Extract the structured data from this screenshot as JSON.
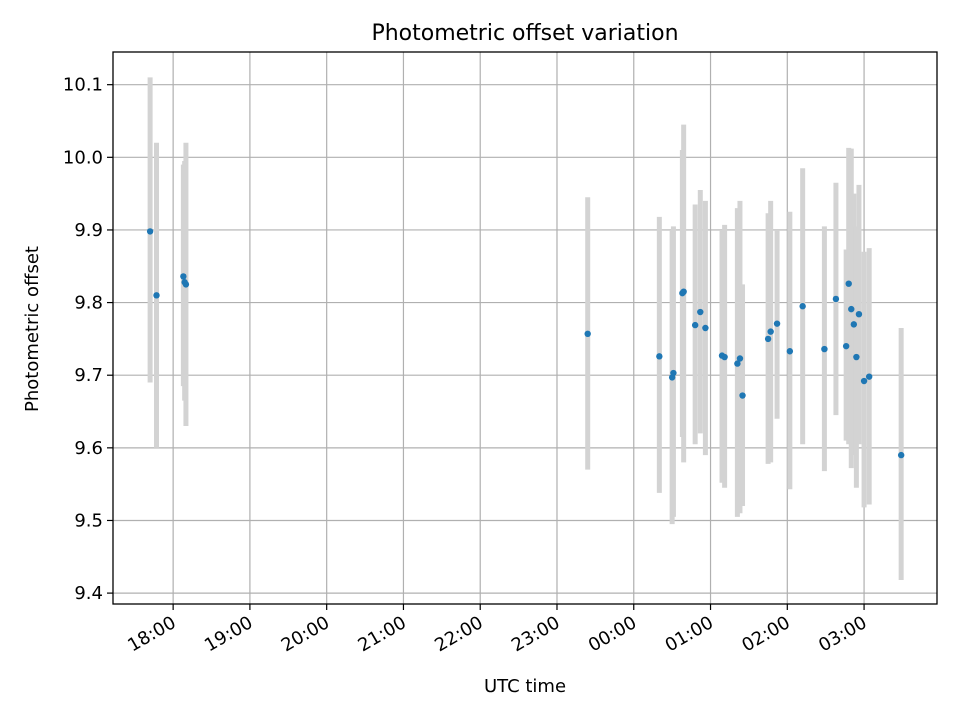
{
  "chart_data": {
    "type": "scatter",
    "title": "Photometric offset variation",
    "xlabel": "UTC time",
    "ylabel": "Photometric offset",
    "x_tick_labels": [
      "18:00",
      "19:00",
      "20:00",
      "21:00",
      "22:00",
      "23:00",
      "00:00",
      "01:00",
      "02:00",
      "03:00"
    ],
    "y_tick_labels": [
      "9.4",
      "9.5",
      "9.6",
      "9.7",
      "9.8",
      "9.9",
      "10.0",
      "10.1"
    ],
    "xlim": [
      "17:13",
      "03:57"
    ],
    "ylim": [
      9.385,
      10.145
    ],
    "grid": true,
    "colors": {
      "point": "#1f77b4",
      "errorbar": "#d3d3d3",
      "grid": "#b0b0b0",
      "axes": "#000000"
    },
    "points": [
      {
        "x": "17:42",
        "y": 9.898,
        "low": 9.69,
        "high": 10.11
      },
      {
        "x": "17:47",
        "y": 9.81,
        "low": 9.6,
        "high": 10.02
      },
      {
        "x": "18:08",
        "y": 9.836,
        "low": 9.685,
        "high": 9.99
      },
      {
        "x": "18:09",
        "y": 9.828,
        "low": 9.665,
        "high": 9.995
      },
      {
        "x": "18:10",
        "y": 9.825,
        "low": 9.63,
        "high": 10.02
      },
      {
        "x": "23:24",
        "y": 9.757,
        "low": 9.57,
        "high": 9.945
      },
      {
        "x": "00:20",
        "y": 9.726,
        "low": 9.538,
        "high": 9.918
      },
      {
        "x": "00:30",
        "y": 9.697,
        "low": 9.495,
        "high": 9.9
      },
      {
        "x": "00:31",
        "y": 9.703,
        "low": 9.505,
        "high": 9.905
      },
      {
        "x": "00:38",
        "y": 9.813,
        "low": 9.615,
        "high": 10.01
      },
      {
        "x": "00:39",
        "y": 9.815,
        "low": 9.58,
        "high": 10.045
      },
      {
        "x": "00:48",
        "y": 9.769,
        "low": 9.605,
        "high": 9.935
      },
      {
        "x": "00:52",
        "y": 9.787,
        "low": 9.62,
        "high": 9.955
      },
      {
        "x": "00:56",
        "y": 9.765,
        "low": 9.59,
        "high": 9.94
      },
      {
        "x": "01:09",
        "y": 9.727,
        "low": 9.552,
        "high": 9.9
      },
      {
        "x": "01:11",
        "y": 9.725,
        "low": 9.545,
        "high": 9.907
      },
      {
        "x": "01:21",
        "y": 9.716,
        "low": 9.505,
        "high": 9.93
      },
      {
        "x": "01:23",
        "y": 9.723,
        "low": 9.51,
        "high": 9.94
      },
      {
        "x": "01:25",
        "y": 9.672,
        "low": 9.52,
        "high": 9.825
      },
      {
        "x": "01:45",
        "y": 9.75,
        "low": 9.578,
        "high": 9.923
      },
      {
        "x": "01:47",
        "y": 9.76,
        "low": 9.58,
        "high": 9.94
      },
      {
        "x": "01:52",
        "y": 9.771,
        "low": 9.64,
        "high": 9.9
      },
      {
        "x": "02:02",
        "y": 9.733,
        "low": 9.543,
        "high": 9.925
      },
      {
        "x": "02:12",
        "y": 9.795,
        "low": 9.605,
        "high": 9.985
      },
      {
        "x": "02:29",
        "y": 9.736,
        "low": 9.568,
        "high": 9.905
      },
      {
        "x": "02:38",
        "y": 9.805,
        "low": 9.645,
        "high": 9.965
      },
      {
        "x": "02:46",
        "y": 9.74,
        "low": 9.61,
        "high": 9.873
      },
      {
        "x": "02:48",
        "y": 9.826,
        "low": 9.605,
        "high": 10.013
      },
      {
        "x": "02:50",
        "y": 9.791,
        "low": 9.572,
        "high": 10.012
      },
      {
        "x": "02:52",
        "y": 9.77,
        "low": 9.59,
        "high": 9.95
      },
      {
        "x": "02:54",
        "y": 9.725,
        "low": 9.545,
        "high": 9.905
      },
      {
        "x": "02:56",
        "y": 9.784,
        "low": 9.605,
        "high": 9.962
      },
      {
        "x": "03:00",
        "y": 9.692,
        "low": 9.518,
        "high": 9.87
      },
      {
        "x": "03:04",
        "y": 9.698,
        "low": 9.522,
        "high": 9.875
      },
      {
        "x": "03:29",
        "y": 9.59,
        "low": 9.418,
        "high": 9.765
      }
    ]
  }
}
